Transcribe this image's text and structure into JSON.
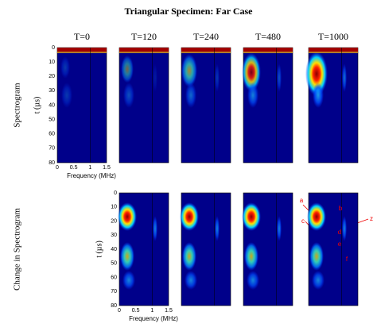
{
  "title": "Triangular Specimen:  Far Case",
  "columns": [
    "T=0",
    "T=120",
    "T=240",
    "T=480",
    "T=1000"
  ],
  "rows": [
    {
      "label": "Spectrogram",
      "y_label": "t (µs)",
      "y_ticks": [
        0,
        10,
        20,
        30,
        40,
        50,
        60,
        70,
        80
      ],
      "x_ticks": [
        0,
        0.5,
        1,
        1.5
      ],
      "x_label": "Frequency (MHz)"
    },
    {
      "label": "Change in Spectrogram",
      "y_label": "t (µs)",
      "y_ticks": [
        0,
        10,
        20,
        30,
        40,
        50,
        60,
        70,
        80
      ],
      "x_ticks": [
        0,
        0.5,
        1,
        1.5
      ],
      "x_label": "Frequency (MHz)"
    }
  ],
  "annotations": [
    "a",
    "b",
    "c",
    "d",
    "e",
    "f",
    "z"
  ]
}
